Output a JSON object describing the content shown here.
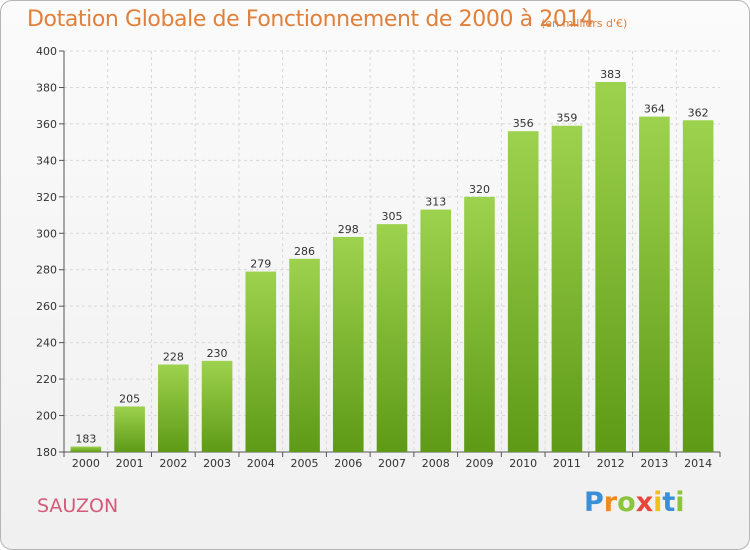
{
  "header": {
    "title": "Dotation Globale de Fonctionnement de 2000 à 2014",
    "subtitle": "(en milliers d'€)"
  },
  "footer": {
    "commune": "SAUZON",
    "logo": {
      "letters": [
        "P",
        "r",
        "o",
        "x",
        "i",
        "t",
        "i"
      ],
      "colors": [
        "#3a8fd6",
        "#f08a1c",
        "#8cc43c",
        "#e8453c",
        "#f0c01c",
        "#3a8fd6",
        "#8cc43c"
      ]
    }
  },
  "chart_data": {
    "type": "bar",
    "categories": [
      "2000",
      "2001",
      "2002",
      "2003",
      "2004",
      "2005",
      "2006",
      "2007",
      "2008",
      "2009",
      "2010",
      "2011",
      "2012",
      "2013",
      "2014"
    ],
    "values": [
      183,
      205,
      228,
      230,
      279,
      286,
      298,
      305,
      313,
      320,
      356,
      359,
      383,
      364,
      362
    ],
    "value_labels": [
      "183",
      "205",
      "228",
      "230",
      "279",
      "286",
      "298",
      "305",
      "313",
      "320",
      "356",
      "359",
      "383",
      "364",
      "362"
    ],
    "ylim": [
      180,
      400
    ],
    "yticks": [
      180,
      200,
      220,
      240,
      260,
      280,
      300,
      320,
      340,
      360,
      380,
      400
    ],
    "ytick_labels": [
      "180",
      "200",
      "220",
      "240",
      "260",
      "280",
      "300",
      "320",
      "340",
      "360",
      "380",
      "400"
    ],
    "grid": true,
    "bar_color_top": "#9dd24e",
    "bar_color_bottom": "#5e9a16"
  }
}
